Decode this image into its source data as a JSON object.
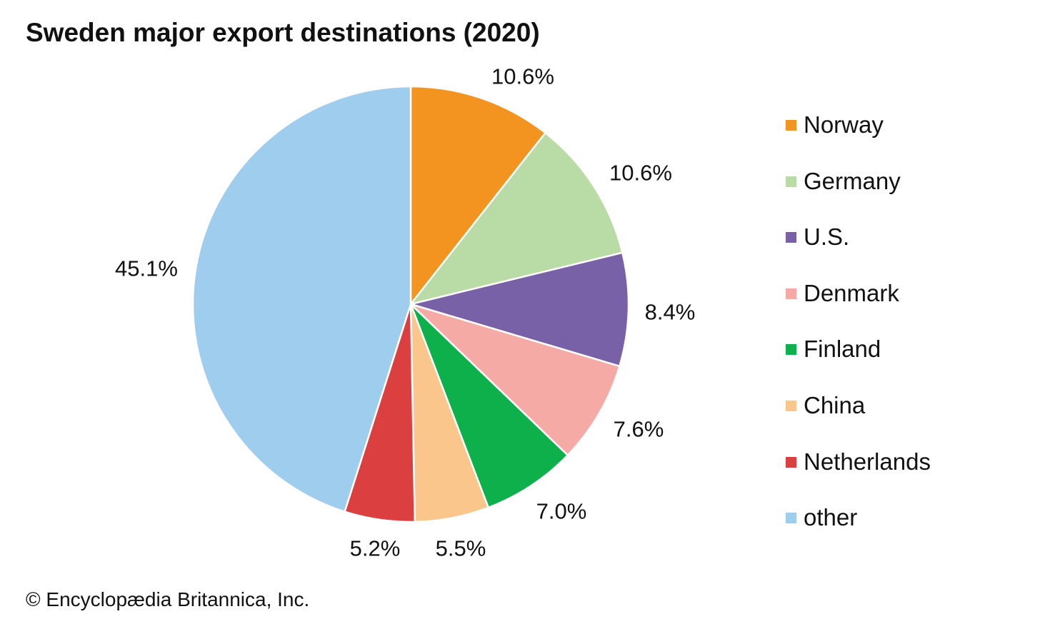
{
  "chart_data": {
    "type": "pie",
    "title": "Sweden major export destinations (2020)",
    "slices": [
      {
        "label": "Norway",
        "value": 10.6,
        "value_label": "10.6%",
        "color": "#f39320"
      },
      {
        "label": "Germany",
        "value": 10.6,
        "value_label": "10.6%",
        "color": "#b9dba5"
      },
      {
        "label": "U.S.",
        "value": 8.4,
        "value_label": "8.4%",
        "color": "#7961a8"
      },
      {
        "label": "Denmark",
        "value": 7.6,
        "value_label": "7.6%",
        "color": "#f6aaa6"
      },
      {
        "label": "Finland",
        "value": 7.0,
        "value_label": "7.0%",
        "color": "#0db04b"
      },
      {
        "label": "China",
        "value": 5.5,
        "value_label": "5.5%",
        "color": "#fbc68b"
      },
      {
        "label": "Netherlands",
        "value": 5.2,
        "value_label": "5.2%",
        "color": "#dc3f40"
      },
      {
        "label": "other",
        "value": 45.1,
        "value_label": "45.1%",
        "color": "#9fcdee"
      }
    ],
    "start": "top, clockwise",
    "legend_position": "right"
  },
  "credit": "© Encyclopædia Britannica, Inc."
}
